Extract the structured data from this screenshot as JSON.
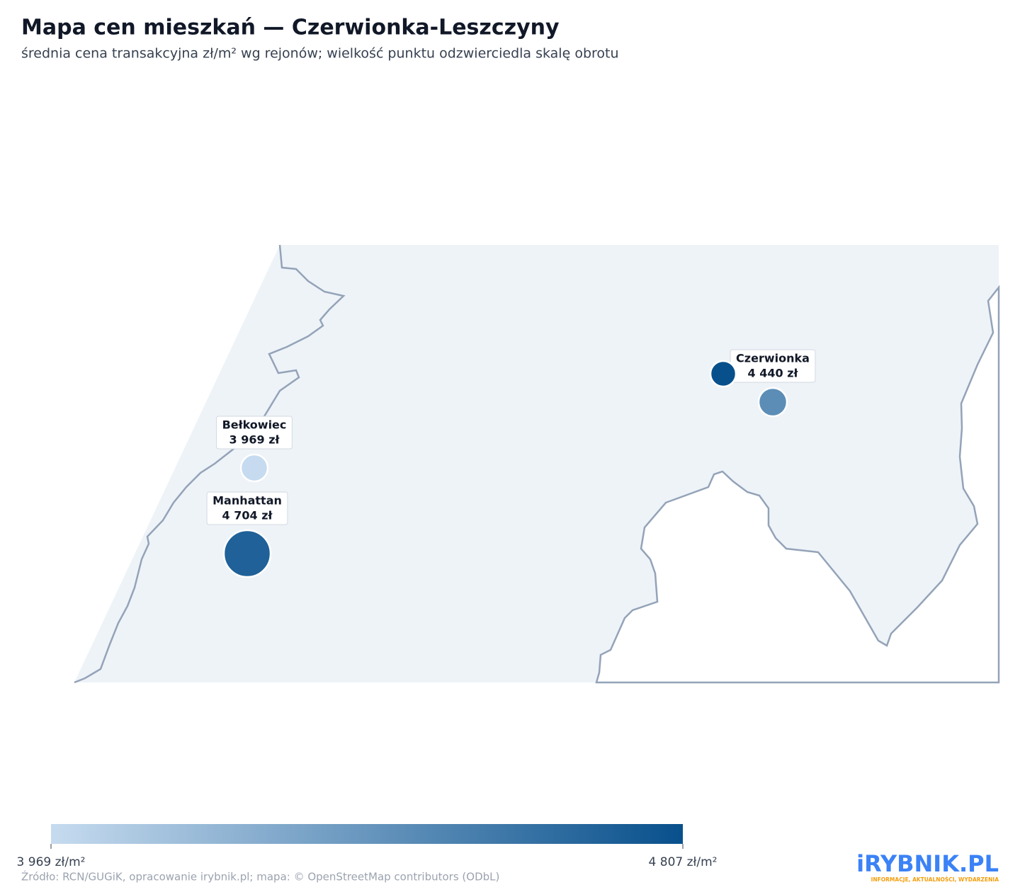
{
  "header": {
    "title": "Mapa cen mieszkań — Czerwionka-Leszczyny",
    "subtitle": "średnia cena transakcyjna zł/m² wg rejonów; wielkość punktu odzwierciedla skalę obrotu"
  },
  "map": {
    "points": [
      {
        "name": "Czerwionka",
        "price": 4440,
        "price_label": "4 440 zł"
      },
      {
        "name": null,
        "price": 4807,
        "price_label": null
      },
      {
        "name": "Bełkowiec",
        "price": 3969,
        "price_label": "3 969 zł"
      },
      {
        "name": "Manhattan",
        "price": 4704,
        "price_label": "4 704 zł"
      }
    ],
    "colorbar": {
      "lim": [
        3969,
        4807
      ],
      "ticks": [
        {
          "value": 3969,
          "label": "3 969 zł/m²"
        },
        {
          "value": 4807,
          "label": "4 807 zł/m²"
        }
      ],
      "colors": [
        "#c6dbef",
        "#08508c"
      ]
    }
  },
  "footer": {
    "source": "Źródło: RCN/GUGiK, opracowanie irybnik.pl; mapa: © OpenStreetMap contributors (ODbL)",
    "logo": "iRYBNIK.PL",
    "logo_tagline": "INFORMACJE, AKTUALNOŚCI, WYDARZENIA"
  }
}
